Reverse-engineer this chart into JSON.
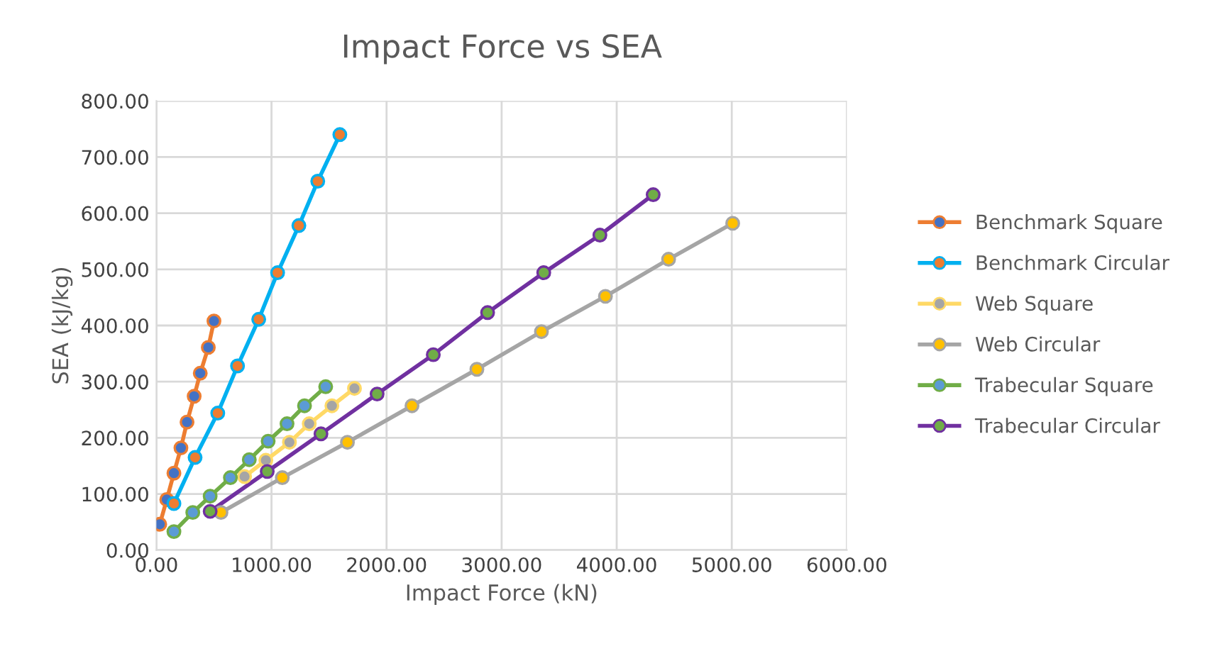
{
  "chart_data": {
    "type": "line",
    "title": "Impact Force vs SEA",
    "xlabel": "Impact Force (kN)",
    "ylabel": "SEA (kJ/kg)",
    "xlim": [
      0,
      6000
    ],
    "xticks": [
      {
        "value": 0,
        "label": "0.00"
      },
      {
        "value": 1000,
        "label": "1000.00"
      },
      {
        "value": 2000,
        "label": "2000.00"
      },
      {
        "value": 3000,
        "label": "3000.00"
      },
      {
        "value": 4000,
        "label": "4000.00"
      },
      {
        "value": 5000,
        "label": "5000.00"
      },
      {
        "value": 6000,
        "label": "6000.00"
      }
    ],
    "ylim": [
      0,
      800
    ],
    "yticks": [
      {
        "value": 0,
        "label": "0.00"
      },
      {
        "value": 100,
        "label": "100.00"
      },
      {
        "value": 200,
        "label": "200.00"
      },
      {
        "value": 300,
        "label": "300.00"
      },
      {
        "value": 400,
        "label": "400.00"
      },
      {
        "value": 500,
        "label": "500.00"
      },
      {
        "value": 600,
        "label": "600.00"
      },
      {
        "value": 700,
        "label": "700.00"
      },
      {
        "value": 800,
        "label": "800.00"
      }
    ],
    "grid": true,
    "legend": "right",
    "marker": "circle",
    "line_style": "solid",
    "series": [
      {
        "name": "Benchmark Square",
        "color": "#ed7d31",
        "colors": [
          "#4472c4",
          "#4472c4",
          "#4472c4",
          "#4472c4",
          "#4472c4",
          "#4472c4",
          "#4472c4",
          "#4472c4",
          "#4472c4"
        ],
        "x": [
          29,
          90,
          152,
          213,
          266,
          328,
          381,
          451,
          500
        ],
        "values": [
          46,
          90,
          137,
          182,
          228,
          274,
          315,
          361,
          408
        ]
      },
      {
        "name": "Benchmark Circular",
        "color": "#00b0f0",
        "colors": [
          "#ed7d31",
          "#ed7d31",
          "#ed7d31",
          "#ed7d31",
          "#ed7d31",
          "#ed7d31",
          "#ed7d31",
          "#ed7d31",
          "#ed7d31"
        ],
        "x": [
          152,
          336,
          533,
          705,
          889,
          1053,
          1238,
          1402,
          1594
        ],
        "values": [
          83,
          165,
          244,
          328,
          411,
          494,
          578,
          657,
          740
        ]
      },
      {
        "name": "Web Square",
        "color": "#ffd966",
        "colors": [
          "#a5a5a5",
          "#a5a5a5",
          "#a5a5a5",
          "#a5a5a5",
          "#a5a5a5",
          "#a5a5a5"
        ],
        "x": [
          766,
          951,
          1156,
          1328,
          1525,
          1721
        ],
        "values": [
          131,
          160,
          192,
          225,
          257,
          288
        ]
      },
      {
        "name": "Web Circular",
        "color": "#a5a5a5",
        "colors": [
          "#ffc000",
          "#ffc000",
          "#ffc000",
          "#ffc000",
          "#ffc000",
          "#ffc000",
          "#ffc000",
          "#ffc000",
          "#ffc000"
        ],
        "x": [
          561,
          1094,
          1660,
          2221,
          2785,
          3346,
          3902,
          4451,
          5008
        ],
        "values": [
          67,
          129,
          192,
          257,
          322,
          389,
          452,
          518,
          582
        ]
      },
      {
        "name": "Trabecular Square",
        "color": "#70ad47",
        "colors": [
          "#5b9bd5",
          "#5b9bd5",
          "#5b9bd5",
          "#5b9bd5",
          "#5b9bd5",
          "#5b9bd5",
          "#5b9bd5",
          "#5b9bd5",
          "#5b9bd5"
        ],
        "x": [
          152,
          316,
          467,
          643,
          807,
          971,
          1135,
          1287,
          1471
        ],
        "values": [
          33,
          67,
          96,
          129,
          161,
          194,
          225,
          257,
          291
        ]
      },
      {
        "name": "Trabecular Circular",
        "color": "#7030a0",
        "colors": [
          "#70ad47",
          "#70ad47",
          "#70ad47",
          "#70ad47",
          "#70ad47",
          "#70ad47",
          "#70ad47",
          "#70ad47",
          "#70ad47"
        ],
        "x": [
          467,
          963,
          1430,
          1918,
          2406,
          2878,
          3366,
          3854,
          4317
        ],
        "values": [
          69,
          140,
          207,
          278,
          348,
          423,
          494,
          561,
          633
        ]
      }
    ]
  }
}
